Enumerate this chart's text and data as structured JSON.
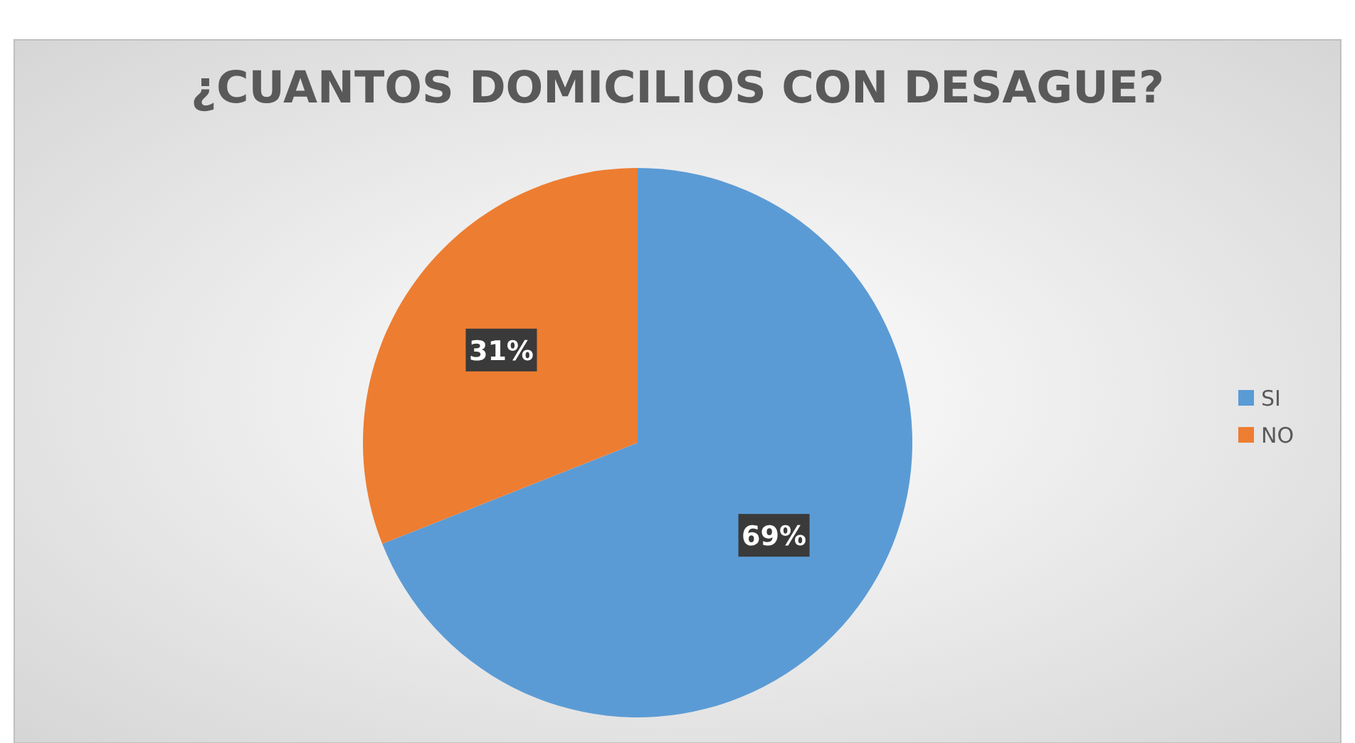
{
  "chart_data": {
    "type": "pie",
    "title": "¿CUANTOS DOMICILIOS CON DESAGUE?",
    "categories": [
      "SI",
      "NO"
    ],
    "values": [
      69,
      31
    ],
    "colors": [
      "#5b9bd5",
      "#ed7d31"
    ],
    "value_labels": [
      "69%",
      "31%"
    ],
    "legend": "right"
  }
}
